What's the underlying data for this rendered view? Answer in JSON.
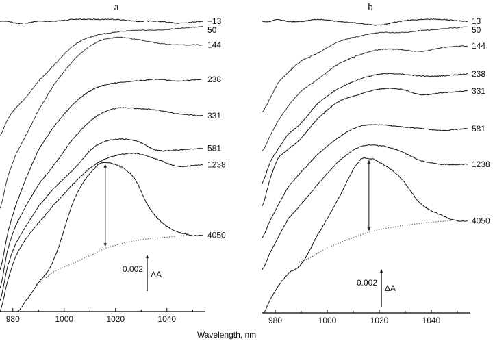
{
  "axis_title": "Wavelength, nm",
  "chart_data": [
    {
      "type": "line",
      "panel_label": "a",
      "xlabel": "Wavelength, nm",
      "ylabel": "",
      "xlim": [
        975,
        1055
      ],
      "x_ticks": [
        "980",
        "1000",
        "1020",
        "1040"
      ],
      "x_minor_ticks": [
        990,
        1010,
        1030,
        1050
      ],
      "y_axis_shown": false,
      "grid": false,
      "scale_bar": {
        "value_label": "0.002",
        "quantity_label": "ΔA",
        "value": 0.002
      },
      "peak_marker_wavelength": 1016,
      "series": [
        {
          "name": "−13",
          "x": [
            975,
            978,
            981,
            985,
            990,
            996,
            1004,
            1012,
            1020,
            1028,
            1036,
            1044,
            1054
          ],
          "y": [
            0.016,
            0.016,
            0.0159,
            0.0159,
            0.016,
            0.016,
            0.0161,
            0.0161,
            0.0161,
            0.016,
            0.016,
            0.0159,
            0.016
          ]
        },
        {
          "name": "50",
          "x": [
            975,
            978,
            981,
            985,
            990,
            996,
            1004,
            1012,
            1020,
            1028,
            1036,
            1044,
            1054
          ],
          "y": [
            0.0097,
            0.0106,
            0.0112,
            0.0118,
            0.0127,
            0.0136,
            0.0147,
            0.0152,
            0.0154,
            0.0155,
            0.0155,
            0.0156,
            0.0157
          ]
        },
        {
          "name": "144",
          "x": [
            975,
            978,
            981,
            985,
            990,
            996,
            1004,
            1012,
            1020,
            1028,
            1036,
            1044,
            1054
          ],
          "y": [
            0.0057,
            0.0074,
            0.0086,
            0.0097,
            0.0111,
            0.0125,
            0.0139,
            0.0148,
            0.0151,
            0.015,
            0.0148,
            0.0147,
            0.0147
          ]
        },
        {
          "name": "238",
          "x": [
            975,
            978,
            981,
            985,
            990,
            996,
            1004,
            1012,
            1020,
            1028,
            1036,
            1044,
            1054
          ],
          "y": [
            0.0023,
            0.0043,
            0.0058,
            0.0073,
            0.0089,
            0.0102,
            0.0115,
            0.0123,
            0.0126,
            0.0127,
            0.0128,
            0.0127,
            0.0128
          ]
        },
        {
          "name": "331",
          "x": [
            975,
            978,
            981,
            985,
            990,
            996,
            1004,
            1012,
            1020,
            1028,
            1036,
            1044,
            1054
          ],
          "y": [
            0.0013,
            0.0034,
            0.0047,
            0.0058,
            0.007,
            0.0081,
            0.0096,
            0.0107,
            0.0112,
            0.0112,
            0.0111,
            0.0109,
            0.0108
          ]
        },
        {
          "name": "581",
          "x": [
            975,
            978,
            981,
            985,
            990,
            996,
            1004,
            1012,
            1020,
            1028,
            1036,
            1044,
            1054
          ],
          "y": [
            0.0006,
            0.0025,
            0.0037,
            0.0047,
            0.0058,
            0.0068,
            0.0079,
            0.0091,
            0.0095,
            0.0094,
            0.0089,
            0.0089,
            0.009
          ]
        },
        {
          "name": "1238",
          "x": [
            975,
            978,
            981,
            985,
            990,
            996,
            1004,
            1012,
            1020,
            1028,
            1036,
            1044,
            1054
          ],
          "y": [
            0.0,
            0.0017,
            0.003,
            0.004,
            0.0049,
            0.0059,
            0.0071,
            0.0081,
            0.0086,
            0.0087,
            0.0084,
            0.008,
            0.0081
          ]
        },
        {
          "name": "4050",
          "x": [
            981.7,
            985,
            990,
            996,
            1004,
            1012,
            1016,
            1020,
            1024,
            1028,
            1032,
            1036,
            1040,
            1044,
            1050,
            1054
          ],
          "y": [
            0.0,
            0.0006,
            0.0016,
            0.0029,
            0.0062,
            0.0079,
            0.0082,
            0.0081,
            0.0078,
            0.0072,
            0.006,
            0.0052,
            0.0047,
            0.0044,
            0.0042,
            0.0042
          ]
        }
      ],
      "baseline": {
        "style": "dotted",
        "x": [
          989,
          996,
          1004,
          1012,
          1016,
          1024,
          1032,
          1040,
          1048
        ],
        "y": [
          0.0015,
          0.0022,
          0.0027,
          0.0032,
          0.0035,
          0.0038,
          0.004,
          0.0041,
          0.0042
        ]
      }
    },
    {
      "type": "line",
      "panel_label": "b",
      "xlabel": "Wavelength, nm",
      "ylabel": "",
      "xlim": [
        975,
        1055
      ],
      "x_ticks": [
        "980",
        "1000",
        "1020",
        "1040"
      ],
      "x_minor_ticks": [
        990,
        1010,
        1030,
        1050
      ],
      "y_axis_shown": false,
      "grid": false,
      "scale_bar": {
        "value_label": "0.002",
        "quantity_label": "ΔA",
        "value": 0.002
      },
      "peak_marker_wavelength": 1016,
      "series": [
        {
          "name": "13",
          "x": [
            975,
            978,
            981,
            985,
            990,
            996,
            1004,
            1012,
            1020,
            1028,
            1036,
            1044,
            1054
          ],
          "y": [
            0.0155,
            0.0155,
            0.0156,
            0.0155,
            0.0155,
            0.0156,
            0.0155,
            0.0154,
            0.0153,
            0.0155,
            0.0156,
            0.0156,
            0.0155
          ]
        },
        {
          "name": "50",
          "x": [
            975,
            978,
            981,
            985,
            990,
            996,
            1004,
            1012,
            1020,
            1028,
            1036,
            1044,
            1054
          ],
          "y": [
            0.0107,
            0.0114,
            0.0122,
            0.0128,
            0.0134,
            0.0138,
            0.0144,
            0.0147,
            0.0149,
            0.0149,
            0.015,
            0.0151,
            0.0152
          ]
        },
        {
          "name": "144",
          "x": [
            975,
            978,
            981,
            985,
            990,
            996,
            1004,
            1012,
            1020,
            1028,
            1036,
            1044,
            1054
          ],
          "y": [
            0.0086,
            0.0094,
            0.0102,
            0.011,
            0.0118,
            0.0124,
            0.0132,
            0.0137,
            0.014,
            0.014,
            0.0139,
            0.0141,
            0.0142
          ]
        },
        {
          "name": "238",
          "x": [
            975,
            978,
            981,
            985,
            990,
            996,
            1004,
            1012,
            1020,
            1028,
            1036,
            1044,
            1054
          ],
          "y": [
            0.0069,
            0.008,
            0.0087,
            0.0095,
            0.0101,
            0.0111,
            0.0119,
            0.0124,
            0.0127,
            0.0127,
            0.0126,
            0.0126,
            0.0127
          ]
        },
        {
          "name": "331",
          "x": [
            975,
            978,
            981,
            985,
            990,
            996,
            1004,
            1012,
            1020,
            1028,
            1036,
            1044,
            1054
          ],
          "y": [
            0.0057,
            0.0071,
            0.0082,
            0.0087,
            0.0093,
            0.0103,
            0.0112,
            0.0116,
            0.0119,
            0.0119,
            0.0116,
            0.0117,
            0.0118
          ]
        },
        {
          "name": "581",
          "x": [
            975,
            978,
            981,
            985,
            990,
            996,
            1004,
            1012,
            1020,
            1028,
            1036,
            1044,
            1054
          ],
          "y": [
            0.004,
            0.0049,
            0.0057,
            0.0067,
            0.0075,
            0.0084,
            0.0093,
            0.0099,
            0.01,
            0.0099,
            0.0098,
            0.0097,
            0.0098
          ]
        },
        {
          "name": "1238",
          "x": [
            975,
            978,
            981,
            985,
            990,
            996,
            1004,
            1012,
            1020,
            1028,
            1036,
            1044,
            1054
          ],
          "y": [
            0.0023,
            0.0032,
            0.004,
            0.005,
            0.0058,
            0.0068,
            0.008,
            0.0088,
            0.0089,
            0.0086,
            0.0081,
            0.0079,
            0.0079
          ]
        },
        {
          "name": "4050",
          "x": [
            975.5,
            978,
            981,
            985,
            990,
            996,
            1004,
            1012,
            1016,
            1020,
            1028,
            1036,
            1044,
            1050,
            1054
          ],
          "y": [
            0.0,
            0.0007,
            0.0014,
            0.0021,
            0.0026,
            0.0041,
            0.006,
            0.008,
            0.0082,
            0.008,
            0.0072,
            0.0058,
            0.0052,
            0.0049,
            0.0049
          ]
        }
      ],
      "baseline": {
        "style": "dotted",
        "x": [
          989.2,
          1000.5,
          1016.3,
          1032.1,
          1047.9
        ],
        "y": [
          0.0027,
          0.0035,
          0.0043,
          0.0047,
          0.0049
        ]
      }
    }
  ]
}
